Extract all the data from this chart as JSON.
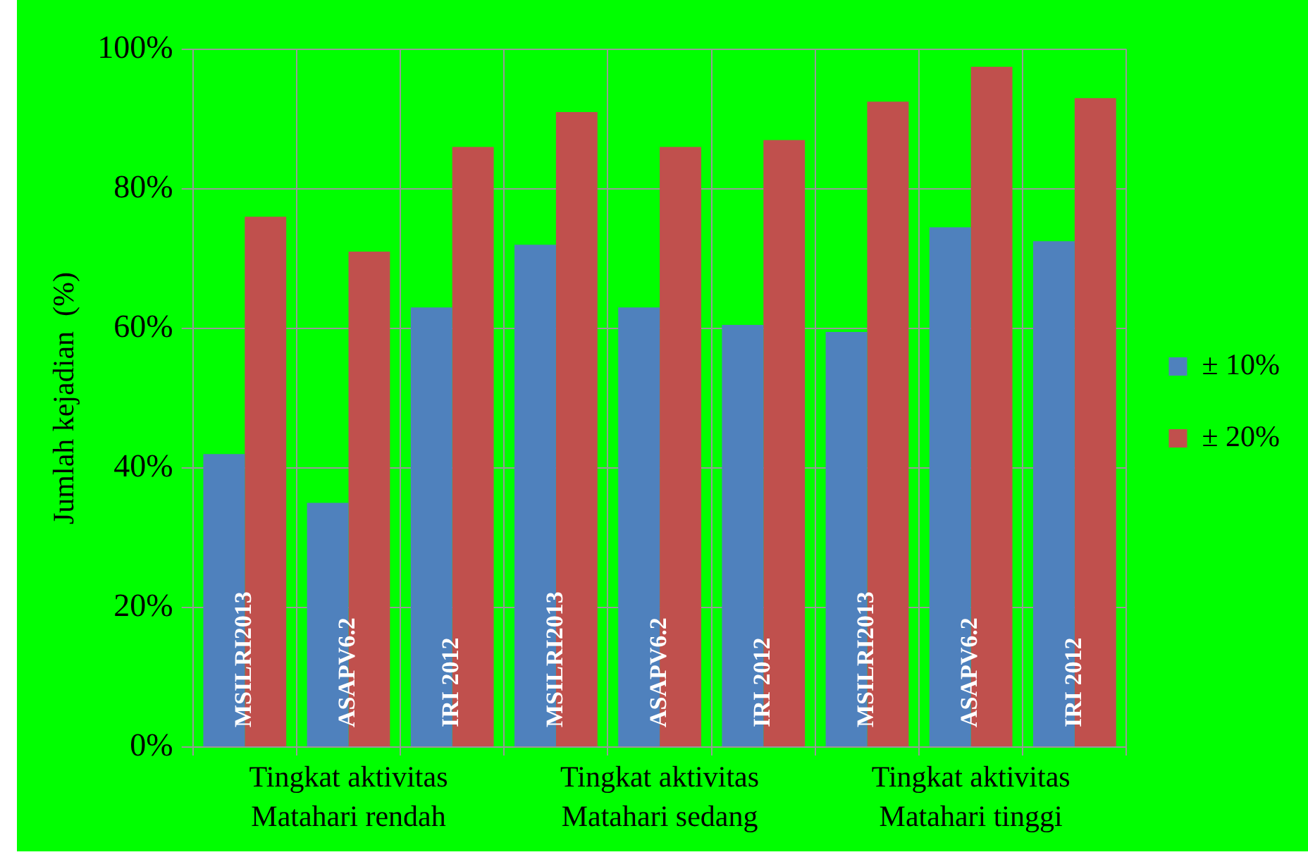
{
  "chart_data": {
    "type": "bar",
    "ylabel": "Jumlah kejadian  (%)",
    "categories": [
      "MSILRI2013",
      "ASAPV6.2",
      "IRI 2012",
      "MSILRI2013",
      "ASAPV6.2",
      "IRI 2012",
      "MSILRI2013",
      "ASAPV6.2",
      "IRI 2012"
    ],
    "series": [
      {
        "name": "± 10%",
        "color": "#4f81bd",
        "values": [
          42,
          35,
          63,
          72,
          63,
          60.5,
          59.5,
          74.5,
          72.5
        ]
      },
      {
        "name": "± 20%",
        "color": "#c0504d",
        "values": [
          76,
          71,
          86,
          91,
          86,
          87,
          92.5,
          97.5,
          93
        ]
      }
    ],
    "ylim": [
      0,
      100
    ],
    "yticks": [
      {
        "value": 0,
        "label": "0%"
      },
      {
        "value": 20,
        "label": "20%"
      },
      {
        "value": 40,
        "label": "40%"
      },
      {
        "value": 60,
        "label": "60%"
      },
      {
        "value": 80,
        "label": "80%"
      },
      {
        "value": 100,
        "label": "100%"
      }
    ],
    "annotations": [
      "Tingkat aktivitas\nMatahari rendah",
      "Tingkat aktivitas\nMatahari sedang",
      "Tingkat aktivitas\nMatahari tinggi"
    ],
    "grid": true,
    "legend": "right"
  }
}
